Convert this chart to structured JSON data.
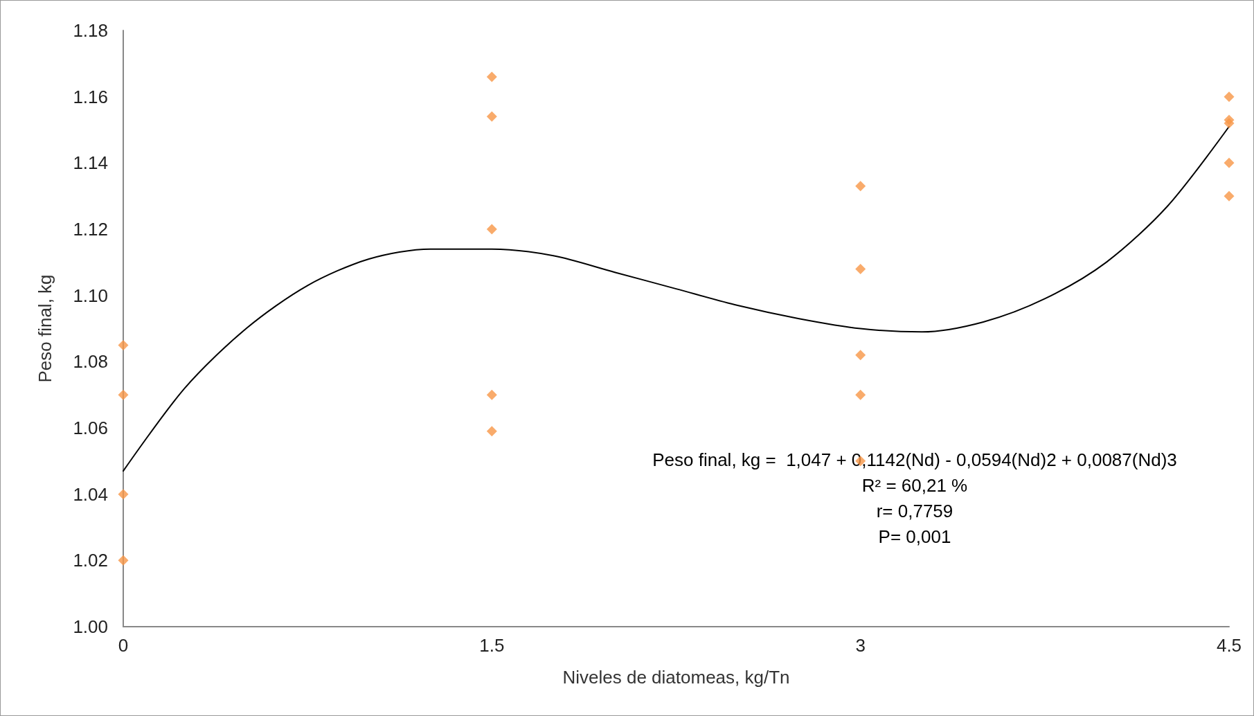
{
  "chart_data": {
    "type": "scatter",
    "xlabel": "Niveles de diatomeas, kg/Tn",
    "ylabel": "Peso final, kg",
    "xlim": [
      0,
      4.5
    ],
    "xticks": [
      0,
      1.5,
      3,
      4.5
    ],
    "ylim": [
      1.0,
      1.18
    ],
    "yticks": [
      {
        "value": 1.0,
        "label": "1.00"
      },
      {
        "value": 1.02,
        "label": "1.02"
      },
      {
        "value": 1.04,
        "label": "1.04"
      },
      {
        "value": 1.06,
        "label": "1.06"
      },
      {
        "value": 1.08,
        "label": "1.08"
      },
      {
        "value": 1.1,
        "label": "1.10"
      },
      {
        "value": 1.12,
        "label": "1.12"
      },
      {
        "value": 1.14,
        "label": "1.14"
      },
      {
        "value": 1.16,
        "label": "1.16"
      },
      {
        "value": 1.18,
        "label": "1.18"
      }
    ],
    "grid": false,
    "marker": "diamond",
    "series": [
      {
        "color": "#f79646",
        "x": [
          0,
          0,
          0,
          0,
          1.5,
          1.5,
          1.5,
          1.5,
          1.5,
          3,
          3,
          3,
          3,
          3,
          4.5,
          4.5,
          4.5,
          4.5,
          4.5
        ],
        "values": [
          1.085,
          1.07,
          1.04,
          1.02,
          1.166,
          1.154,
          1.12,
          1.07,
          1.059,
          1.133,
          1.108,
          1.082,
          1.07,
          1.05,
          1.16,
          1.153,
          1.152,
          1.14,
          1.13
        ]
      },
      {
        "type": "line",
        "color": "#000000",
        "marker": "none",
        "line_style": "solid",
        "x": [
          0,
          0.25,
          0.5,
          0.75,
          1,
          1.25,
          1.5,
          1.75,
          2,
          2.25,
          2.5,
          2.75,
          3,
          3.25,
          3.5,
          3.75,
          4,
          4.25,
          4.5
        ],
        "values": [
          1.047,
          1.072,
          1.09,
          1.103,
          1.111,
          1.114,
          1.114,
          1.112,
          1.107,
          1.102,
          1.097,
          1.093,
          1.09,
          1.089,
          1.092,
          1.099,
          1.11,
          1.127,
          1.151
        ]
      }
    ],
    "annotations": [
      "Peso final, kg =  1,047 + 0,1142(Nd) - 0,0594(Nd)2 + 0,0087(Nd)3",
      "R² = 60,21 %",
      "r= 0,7759",
      "P= 0,001"
    ]
  }
}
